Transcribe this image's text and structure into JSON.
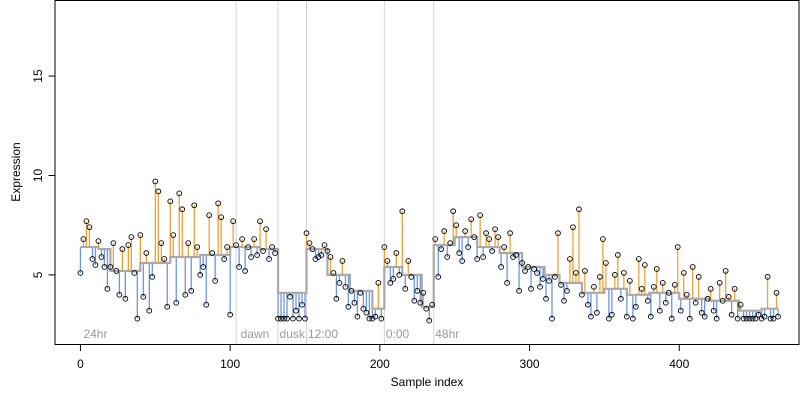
{
  "chart_data": {
    "type": "scatter",
    "xlabel": "Sample index",
    "ylabel": "Expression",
    "xlim": [
      -17,
      480
    ],
    "ylim": [
      1.5,
      18.8
    ],
    "x_ticks": [
      "0",
      "100",
      "200",
      "300",
      "400"
    ],
    "y_ticks": [
      "5",
      "10",
      "15"
    ],
    "vlines": [
      104,
      132,
      151,
      203,
      236
    ],
    "period_labels": [
      {
        "text": "24hr",
        "x": 2
      },
      {
        "text": "dawn",
        "x": 107
      },
      {
        "text": "dusk",
        "x": 133
      },
      {
        "text": "12:00",
        "x": 152
      },
      {
        "text": "0:00",
        "x": 204
      },
      {
        "text": "48hr",
        "x": 237
      }
    ],
    "colors": {
      "above_residual": "#E8A33A",
      "below_residual": "#6F97D9",
      "fit_line": "#A9A9A9",
      "points": "#000000",
      "vline": "#D3D3D3"
    },
    "fitted_step": [
      [
        0,
        6.4
      ],
      [
        12,
        6.3
      ],
      [
        20,
        5.2
      ],
      [
        40,
        5.6
      ],
      [
        60,
        5.9
      ],
      [
        80,
        6.0
      ],
      [
        100,
        6.4
      ],
      [
        120,
        6.3
      ],
      [
        132,
        4.1
      ],
      [
        151,
        6.3
      ],
      [
        165,
        5.0
      ],
      [
        180,
        4.2
      ],
      [
        195,
        3.3
      ],
      [
        203,
        5.4
      ],
      [
        215,
        5.0
      ],
      [
        228,
        3.4
      ],
      [
        236,
        6.5
      ],
      [
        250,
        6.9
      ],
      [
        265,
        6.4
      ],
      [
        280,
        6.1
      ],
      [
        295,
        5.4
      ],
      [
        310,
        5.0
      ],
      [
        320,
        4.6
      ],
      [
        335,
        4.1
      ],
      [
        350,
        4.3
      ],
      [
        365,
        4.0
      ],
      [
        380,
        4.1
      ],
      [
        400,
        3.8
      ],
      [
        420,
        3.7
      ],
      [
        440,
        3.2
      ],
      [
        455,
        3.3
      ],
      [
        465,
        3.3
      ]
    ],
    "series": [
      {
        "points": [
          [
            0,
            5.1
          ],
          [
            2,
            6.8
          ],
          [
            4,
            7.7
          ],
          [
            6,
            7.4
          ],
          [
            8,
            5.8
          ],
          [
            10,
            5.5
          ],
          [
            12,
            6.7
          ],
          [
            14,
            5.9
          ],
          [
            16,
            5.4
          ],
          [
            18,
            4.3
          ],
          [
            20,
            5.4
          ],
          [
            22,
            6.6
          ],
          [
            24,
            5.2
          ],
          [
            26,
            4.0
          ],
          [
            28,
            6.3
          ],
          [
            30,
            3.8
          ],
          [
            32,
            6.5
          ],
          [
            34,
            6.9
          ],
          [
            36,
            5.1
          ],
          [
            38,
            2.8
          ],
          [
            40,
            7.0
          ],
          [
            42,
            3.9
          ],
          [
            44,
            6.1
          ],
          [
            46,
            3.2
          ],
          [
            48,
            4.9
          ],
          [
            50,
            9.7
          ],
          [
            52,
            9.2
          ],
          [
            54,
            6.6
          ],
          [
            56,
            5.8
          ],
          [
            58,
            3.4
          ],
          [
            60,
            8.7
          ],
          [
            62,
            7.0
          ],
          [
            64,
            3.6
          ],
          [
            66,
            9.1
          ],
          [
            68,
            8.3
          ],
          [
            70,
            4.0
          ],
          [
            72,
            6.6
          ],
          [
            74,
            4.2
          ],
          [
            76,
            8.5
          ],
          [
            78,
            6.4
          ],
          [
            80,
            5.0
          ],
          [
            82,
            5.4
          ],
          [
            84,
            3.5
          ],
          [
            86,
            8.0
          ],
          [
            88,
            6.1
          ],
          [
            90,
            4.7
          ],
          [
            92,
            8.6
          ],
          [
            94,
            7.9
          ],
          [
            96,
            5.8
          ],
          [
            98,
            6.4
          ],
          [
            100,
            3.0
          ],
          [
            102,
            7.7
          ],
          [
            104,
            6.5
          ],
          [
            106,
            5.4
          ],
          [
            108,
            6.8
          ],
          [
            110,
            5.2
          ],
          [
            112,
            6.4
          ],
          [
            114,
            5.9
          ],
          [
            116,
            6.8
          ],
          [
            118,
            6.0
          ],
          [
            120,
            7.7
          ],
          [
            122,
            6.2
          ],
          [
            124,
            7.3
          ],
          [
            126,
            5.8
          ],
          [
            128,
            6.4
          ],
          [
            130,
            6.1
          ],
          [
            132,
            2.8
          ],
          [
            134,
            2.8
          ],
          [
            136,
            2.8
          ],
          [
            138,
            2.8
          ],
          [
            140,
            3.9
          ],
          [
            142,
            2.8
          ],
          [
            144,
            3.2
          ],
          [
            146,
            2.8
          ],
          [
            148,
            3.5
          ],
          [
            150,
            2.8
          ],
          [
            151,
            7.1
          ],
          [
            153,
            6.6
          ],
          [
            155,
            6.3
          ],
          [
            157,
            5.8
          ],
          [
            159,
            5.9
          ],
          [
            161,
            6.0
          ],
          [
            163,
            6.5
          ],
          [
            165,
            6.2
          ],
          [
            167,
            5.9
          ],
          [
            169,
            5.1
          ],
          [
            171,
            3.8
          ],
          [
            173,
            4.6
          ],
          [
            175,
            5.7
          ],
          [
            177,
            4.4
          ],
          [
            179,
            3.4
          ],
          [
            181,
            4.2
          ],
          [
            183,
            3.6
          ],
          [
            185,
            2.9
          ],
          [
            187,
            4.1
          ],
          [
            189,
            3.3
          ],
          [
            191,
            3.1
          ],
          [
            193,
            2.8
          ],
          [
            195,
            2.8
          ],
          [
            197,
            2.9
          ],
          [
            199,
            4.6
          ],
          [
            201,
            2.8
          ],
          [
            203,
            6.4
          ],
          [
            205,
            5.7
          ],
          [
            207,
            4.6
          ],
          [
            209,
            4.8
          ],
          [
            211,
            6.1
          ],
          [
            213,
            5.0
          ],
          [
            215,
            8.2
          ],
          [
            217,
            4.3
          ],
          [
            219,
            5.7
          ],
          [
            221,
            4.9
          ],
          [
            223,
            3.7
          ],
          [
            225,
            4.2
          ],
          [
            227,
            3.6
          ],
          [
            229,
            4.1
          ],
          [
            231,
            3.3
          ],
          [
            233,
            2.7
          ],
          [
            235,
            3.5
          ],
          [
            237,
            6.8
          ],
          [
            239,
            4.9
          ],
          [
            241,
            6.3
          ],
          [
            243,
            7.2
          ],
          [
            245,
            5.9
          ],
          [
            247,
            6.6
          ],
          [
            249,
            8.2
          ],
          [
            251,
            7.5
          ],
          [
            253,
            6.1
          ],
          [
            255,
            5.7
          ],
          [
            257,
            7.2
          ],
          [
            259,
            6.4
          ],
          [
            261,
            7.8
          ],
          [
            263,
            6.9
          ],
          [
            265,
            5.8
          ],
          [
            267,
            8.0
          ],
          [
            269,
            5.9
          ],
          [
            271,
            7.1
          ],
          [
            273,
            6.8
          ],
          [
            275,
            6.2
          ],
          [
            277,
            7.3
          ],
          [
            279,
            6.9
          ],
          [
            281,
            5.4
          ],
          [
            283,
            6.4
          ],
          [
            285,
            4.6
          ],
          [
            287,
            7.1
          ],
          [
            289,
            5.9
          ],
          [
            291,
            6.0
          ],
          [
            293,
            4.2
          ],
          [
            295,
            5.6
          ],
          [
            297,
            5.2
          ],
          [
            299,
            5.4
          ],
          [
            301,
            4.3
          ],
          [
            303,
            5.3
          ],
          [
            305,
            5.1
          ],
          [
            307,
            4.4
          ],
          [
            309,
            4.8
          ],
          [
            311,
            3.8
          ],
          [
            313,
            4.7
          ],
          [
            315,
            2.8
          ],
          [
            317,
            4.9
          ],
          [
            319,
            7.1
          ],
          [
            321,
            4.5
          ],
          [
            323,
            3.7
          ],
          [
            325,
            4.2
          ],
          [
            327,
            5.8
          ],
          [
            329,
            7.4
          ],
          [
            331,
            5.1
          ],
          [
            333,
            8.3
          ],
          [
            335,
            4.0
          ],
          [
            337,
            5.2
          ],
          [
            339,
            3.5
          ],
          [
            341,
            2.9
          ],
          [
            343,
            4.4
          ],
          [
            345,
            3.1
          ],
          [
            347,
            4.9
          ],
          [
            349,
            6.8
          ],
          [
            351,
            5.6
          ],
          [
            353,
            2.8
          ],
          [
            355,
            3.0
          ],
          [
            357,
            5.0
          ],
          [
            359,
            6.0
          ],
          [
            361,
            3.8
          ],
          [
            363,
            5.1
          ],
          [
            365,
            2.9
          ],
          [
            367,
            4.7
          ],
          [
            369,
            2.8
          ],
          [
            371,
            3.4
          ],
          [
            373,
            5.8
          ],
          [
            375,
            4.3
          ],
          [
            377,
            5.5
          ],
          [
            379,
            3.7
          ],
          [
            381,
            2.9
          ],
          [
            383,
            4.4
          ],
          [
            385,
            5.3
          ],
          [
            387,
            3.2
          ],
          [
            389,
            4.6
          ],
          [
            391,
            3.6
          ],
          [
            393,
            4.1
          ],
          [
            395,
            2.8
          ],
          [
            397,
            4.5
          ],
          [
            399,
            6.4
          ],
          [
            401,
            3.2
          ],
          [
            403,
            5.1
          ],
          [
            405,
            4.0
          ],
          [
            407,
            2.8
          ],
          [
            409,
            5.4
          ],
          [
            411,
            3.6
          ],
          [
            413,
            4.9
          ],
          [
            415,
            3.1
          ],
          [
            417,
            2.9
          ],
          [
            419,
            3.8
          ],
          [
            421,
            4.3
          ],
          [
            423,
            3.2
          ],
          [
            425,
            2.8
          ],
          [
            427,
            4.6
          ],
          [
            429,
            3.7
          ],
          [
            431,
            5.2
          ],
          [
            433,
            3.9
          ],
          [
            435,
            3.0
          ],
          [
            437,
            4.3
          ],
          [
            439,
            2.8
          ],
          [
            441,
            3.5
          ],
          [
            443,
            2.8
          ],
          [
            445,
            2.8
          ],
          [
            447,
            2.8
          ],
          [
            449,
            2.8
          ],
          [
            451,
            2.8
          ],
          [
            453,
            3.0
          ],
          [
            455,
            2.8
          ],
          [
            457,
            2.9
          ],
          [
            459,
            4.9
          ],
          [
            461,
            2.8
          ],
          [
            463,
            2.8
          ],
          [
            465,
            4.1
          ],
          [
            466,
            2.9
          ]
        ]
      }
    ]
  }
}
